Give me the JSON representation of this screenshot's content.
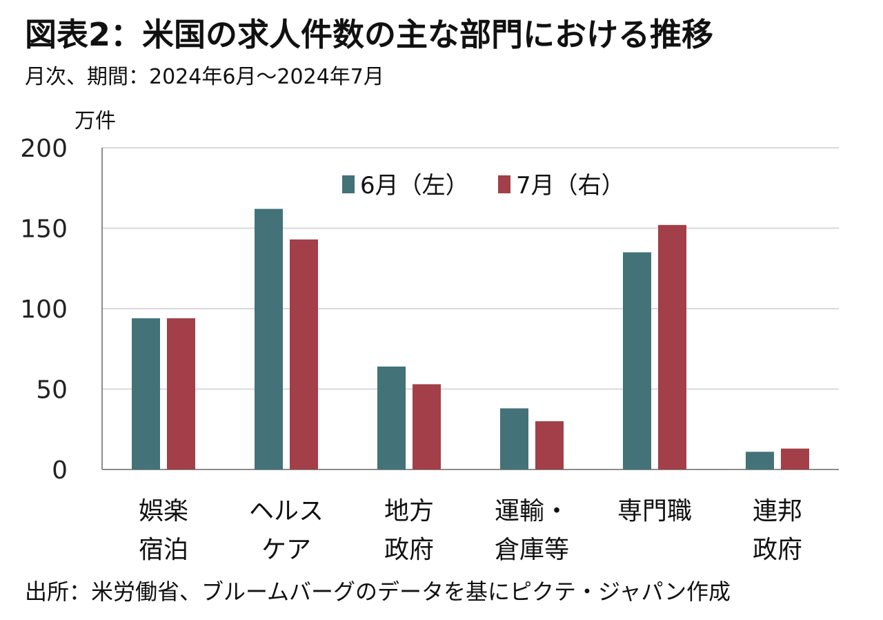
{
  "title": "図表2：米国の求人件数の主な部門における推移",
  "subtitle": "月次、期間：2024年6月～2024年7月",
  "unit": "万件",
  "source": "出所：米労働省、ブルームバーグのデータを基にピクテ・ジャパン作成",
  "chart_data": {
    "type": "bar",
    "categories": [
      [
        "娯楽",
        "宿泊"
      ],
      [
        "ヘルス",
        "ケア"
      ],
      [
        "地方",
        "政府"
      ],
      [
        "運輸・",
        "倉庫等"
      ],
      [
        "専門職"
      ],
      [
        "連邦",
        "政府"
      ]
    ],
    "series": [
      {
        "name": "6月（左）",
        "color": "#437278",
        "values": [
          94,
          162,
          64,
          38,
          135,
          11
        ]
      },
      {
        "name": "7月（右）",
        "color": "#A23F48",
        "values": [
          94,
          143,
          53,
          30,
          152,
          13
        ]
      }
    ],
    "ylim": [
      0,
      200
    ],
    "yticks": [
      0,
      50,
      100,
      150,
      200
    ],
    "grid": true,
    "legend": "top-center"
  }
}
